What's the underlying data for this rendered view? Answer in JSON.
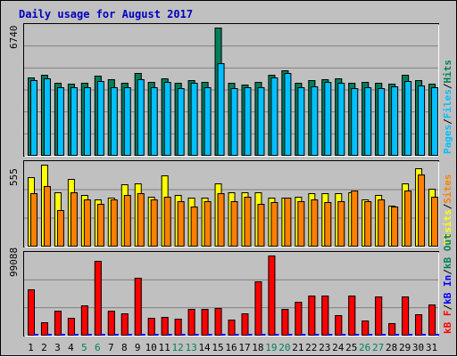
{
  "chart_data": {
    "title": "Daily usage for August 2017",
    "colors": {
      "hits": "#00805c",
      "files": "#00c0ff",
      "sites": "#ff8000",
      "visits": "#ffff00",
      "kbytes": "#ff0000",
      "grid": "#808080",
      "weekend_label": "#00805c",
      "weekday_label": "#000000",
      "title": "#0000c0",
      "slash": "#000000",
      "background": "#c0c0c0",
      "plot_bg": "#c0c0c0"
    },
    "days": [
      "1",
      "2",
      "3",
      "4",
      "5",
      "6",
      "7",
      "8",
      "9",
      "10",
      "11",
      "12",
      "13",
      "14",
      "15",
      "16",
      "17",
      "18",
      "19",
      "20",
      "21",
      "22",
      "23",
      "24",
      "25",
      "26",
      "27",
      "28",
      "29",
      "30",
      "31"
    ],
    "weekend_days": [
      "5",
      "6",
      "12",
      "13",
      "19",
      "20",
      "26",
      "27"
    ],
    "panels": [
      {
        "type": "bar",
        "max_label": "6740",
        "ylim": [
          0,
          6740
        ],
        "series": [
          {
            "name": "Hits",
            "key": "hits",
            "values": [
              4120,
              4270,
              3830,
              3780,
              3850,
              4200,
              4010,
              3830,
              4340,
              3870,
              4050,
              3830,
              3980,
              3870,
              6720,
              3830,
              3760,
              3880,
              4240,
              4500,
              3830,
              3970,
              4040,
              4050,
              3840,
              3870,
              3840,
              3800,
              4270,
              4000,
              3790
            ]
          },
          {
            "name": "Files",
            "key": "files",
            "values": [
              3980,
              4060,
              3610,
              3620,
              3620,
              3940,
              3620,
              3620,
              4010,
              3620,
              3900,
              3580,
              3820,
              3600,
              4850,
              3580,
              3610,
              3600,
              4140,
              4350,
              3620,
              3650,
              3880,
              3850,
              3570,
              3620,
              3560,
              3640,
              3940,
              3700,
              3620
            ]
          },
          {
            "name": "Pages",
            "key": "pages",
            "values": []
          }
        ],
        "legend": [
          "Pages",
          "Files",
          "Hits"
        ],
        "legend_colors": [
          "#00c0ff",
          "#00c0ff",
          "#00805c"
        ]
      },
      {
        "type": "bar",
        "max_label": "555",
        "ylim": [
          0,
          555
        ],
        "series": [
          {
            "name": "Visits",
            "key": "visits",
            "values": [
              470,
              555,
              370,
              460,
              350,
              320,
              330,
              420,
              430,
              340,
              480,
              350,
              330,
              330,
              430,
              370,
              370,
              370,
              330,
              330,
              340,
              360,
              360,
              360,
              370,
              320,
              350,
              280,
              430,
              530,
              390
            ]
          },
          {
            "name": "Sites",
            "key": "sites",
            "values": [
              360,
              410,
              250,
              370,
              320,
              290,
              320,
              350,
              360,
              320,
              340,
              310,
              270,
              310,
              360,
              310,
              340,
              290,
              300,
              330,
              310,
              320,
              300,
              310,
              380,
              310,
              320,
              270,
              380,
              490,
              340
            ]
          }
        ],
        "legend": [
          "Visits",
          "Sites"
        ],
        "legend_colors": [
          "#ffff00",
          "#ff8000"
        ]
      },
      {
        "type": "bar",
        "max_label": "99088",
        "ylim": [
          0,
          99088
        ],
        "series": [
          {
            "name": "kB F",
            "key": "kbytes",
            "values": [
              57000,
              17000,
              31000,
              22000,
              37000,
              92000,
              31000,
              27000,
              72000,
              22000,
              23000,
              21000,
              33000,
              33000,
              34000,
              20000,
              28000,
              67000,
              99000,
              33000,
              42000,
              49000,
              49000,
              25000,
              49000,
              19000,
              48000,
              15000,
              48000,
              26000,
              39000
            ]
          }
        ],
        "legend": [
          "kB F",
          "kB In",
          "kB Out"
        ],
        "legend_colors": [
          "#ff0000",
          "#0000ff",
          "#00805c"
        ]
      }
    ]
  }
}
